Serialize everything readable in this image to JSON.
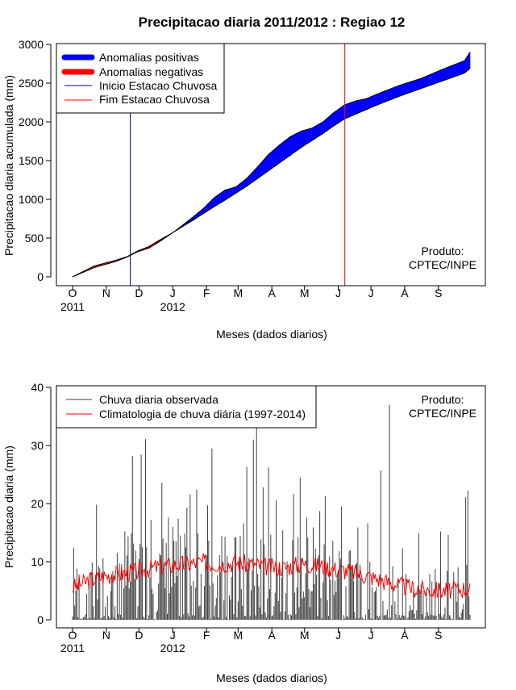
{
  "chart_data": [
    {
      "type": "area",
      "title": "Precipitacao diaria 2011/2012 : Regiao 12",
      "xlabel": "Meses (dados diarios)",
      "ylabel": "Precipitacao diaria acumulada (mm)",
      "ylim": [
        0,
        3000
      ],
      "yticks": [
        0,
        500,
        1000,
        1500,
        2000,
        2500,
        3000
      ],
      "month_ticks": [
        "O",
        "N",
        "D",
        "J",
        "F",
        "M",
        "A",
        "M",
        "J",
        "J",
        "A",
        "S"
      ],
      "year_labels": [
        {
          "label": "2011",
          "day": 0
        },
        {
          "label": "2012",
          "day": 92
        }
      ],
      "legend": [
        {
          "label": "Anomalias positivas",
          "color": "#0000ff",
          "style": "thick"
        },
        {
          "label": "Anomalias negativas",
          "color": "#ff0000",
          "style": "thick"
        },
        {
          "label": "Inicio Estacao Chuvosa",
          "color": "#00008b",
          "style": "line"
        },
        {
          "label": "Fim Estacao Chuvosa",
          "color": "#ff0000",
          "style": "line"
        }
      ],
      "annotation": [
        "Produto:",
        "CPTEC/INPE"
      ],
      "season_start_day": 53,
      "season_end_day": 250,
      "days": [
        0,
        20,
        40,
        50,
        60,
        70,
        80,
        92,
        100,
        110,
        120,
        130,
        140,
        150,
        160,
        170,
        180,
        190,
        200,
        210,
        220,
        230,
        240,
        250,
        260,
        270,
        280,
        300,
        320,
        340,
        360,
        365
      ],
      "observed": [
        0,
        120,
        200,
        255,
        325,
        370,
        455,
        570,
        655,
        765,
        880,
        1020,
        1120,
        1160,
        1270,
        1420,
        1580,
        1700,
        1810,
        1880,
        1920,
        2000,
        2120,
        2220,
        2270,
        2300,
        2360,
        2470,
        2560,
        2680,
        2790,
        2900
      ],
      "climatology": [
        0,
        140,
        215,
        260,
        335,
        390,
        475,
        570,
        640,
        725,
        815,
        905,
        990,
        1080,
        1170,
        1270,
        1370,
        1470,
        1570,
        1670,
        1760,
        1850,
        1950,
        2040,
        2100,
        2160,
        2220,
        2330,
        2430,
        2530,
        2630,
        2690
      ]
    },
    {
      "type": "bar",
      "xlabel": "Meses (dados diarios)",
      "ylabel": "Precipitacao diaria (mm)",
      "ylim": [
        0,
        40
      ],
      "yticks": [
        0,
        10,
        20,
        30,
        40
      ],
      "month_ticks": [
        "O",
        "N",
        "D",
        "J",
        "F",
        "M",
        "A",
        "M",
        "J",
        "J",
        "A",
        "S"
      ],
      "year_labels": [
        {
          "label": "2011",
          "day": 0
        },
        {
          "label": "2012",
          "day": 92
        }
      ],
      "legend": [
        {
          "label": "Chuva diaria observada",
          "color": "#404040"
        },
        {
          "label": "Climatologia de chuva diária (1997-2014)",
          "color": "#ff0000"
        }
      ],
      "annotation": [
        "Produto:",
        "CPTEC/INPE"
      ],
      "observed_peaks": [
        {
          "day": 1,
          "value": 12.4
        },
        {
          "day": 17,
          "value": 8.2
        },
        {
          "day": 22,
          "value": 19.8
        },
        {
          "day": 28,
          "value": 10.6
        },
        {
          "day": 36,
          "value": 7.9
        },
        {
          "day": 43,
          "value": 9.7
        },
        {
          "day": 48,
          "value": 15.2
        },
        {
          "day": 55,
          "value": 28.2
        },
        {
          "day": 63,
          "value": 28.4
        },
        {
          "day": 67,
          "value": 31.1
        },
        {
          "day": 72,
          "value": 17.2
        },
        {
          "day": 82,
          "value": 23.6
        },
        {
          "day": 88,
          "value": 17.6
        },
        {
          "day": 92,
          "value": 16.0
        },
        {
          "day": 97,
          "value": 17.4
        },
        {
          "day": 105,
          "value": 19.3
        },
        {
          "day": 108,
          "value": 21.6
        },
        {
          "day": 114,
          "value": 22.4
        },
        {
          "day": 124,
          "value": 19.7
        },
        {
          "day": 128,
          "value": 29.5
        },
        {
          "day": 137,
          "value": 14.4
        },
        {
          "day": 140,
          "value": 14.3
        },
        {
          "day": 150,
          "value": 14.2
        },
        {
          "day": 157,
          "value": 16.6
        },
        {
          "day": 160,
          "value": 26.3
        },
        {
          "day": 166,
          "value": 31.0
        },
        {
          "day": 169,
          "value": 33.0
        },
        {
          "day": 175,
          "value": 22.8
        },
        {
          "day": 180,
          "value": 26.2
        },
        {
          "day": 187,
          "value": 20.6
        },
        {
          "day": 193,
          "value": 15.4
        },
        {
          "day": 203,
          "value": 21.7
        },
        {
          "day": 209,
          "value": 24.5
        },
        {
          "day": 215,
          "value": 17.6
        },
        {
          "day": 221,
          "value": 15.9
        },
        {
          "day": 227,
          "value": 18.7
        },
        {
          "day": 232,
          "value": 21.3
        },
        {
          "day": 239,
          "value": 13.6
        },
        {
          "day": 247,
          "value": 19.5
        },
        {
          "day": 262,
          "value": 15.9
        },
        {
          "day": 271,
          "value": 16.6
        },
        {
          "day": 283,
          "value": 25.7
        },
        {
          "day": 291,
          "value": 37.0
        },
        {
          "day": 303,
          "value": 12.3
        },
        {
          "day": 318,
          "value": 14.9
        },
        {
          "day": 338,
          "value": 15.2
        },
        {
          "day": 345,
          "value": 14.6
        },
        {
          "day": 361,
          "value": 21.1
        },
        {
          "day": 363,
          "value": 22.2
        }
      ],
      "climatology_curve": [
        {
          "day": 0,
          "value": 5.5
        },
        {
          "day": 15,
          "value": 6.8
        },
        {
          "day": 30,
          "value": 7.6
        },
        {
          "day": 45,
          "value": 7.9
        },
        {
          "day": 60,
          "value": 8.3
        },
        {
          "day": 75,
          "value": 9.0
        },
        {
          "day": 90,
          "value": 9.4
        },
        {
          "day": 105,
          "value": 9.6
        },
        {
          "day": 120,
          "value": 9.9
        },
        {
          "day": 135,
          "value": 9.6
        },
        {
          "day": 150,
          "value": 9.8
        },
        {
          "day": 165,
          "value": 9.5
        },
        {
          "day": 180,
          "value": 9.1
        },
        {
          "day": 195,
          "value": 9.0
        },
        {
          "day": 210,
          "value": 9.6
        },
        {
          "day": 225,
          "value": 9.4
        },
        {
          "day": 240,
          "value": 8.8
        },
        {
          "day": 255,
          "value": 8.3
        },
        {
          "day": 270,
          "value": 7.6
        },
        {
          "day": 285,
          "value": 6.7
        },
        {
          "day": 300,
          "value": 5.9
        },
        {
          "day": 315,
          "value": 5.3
        },
        {
          "day": 330,
          "value": 5.1
        },
        {
          "day": 345,
          "value": 5.0
        },
        {
          "day": 360,
          "value": 5.4
        },
        {
          "day": 365,
          "value": 5.2
        }
      ]
    }
  ]
}
